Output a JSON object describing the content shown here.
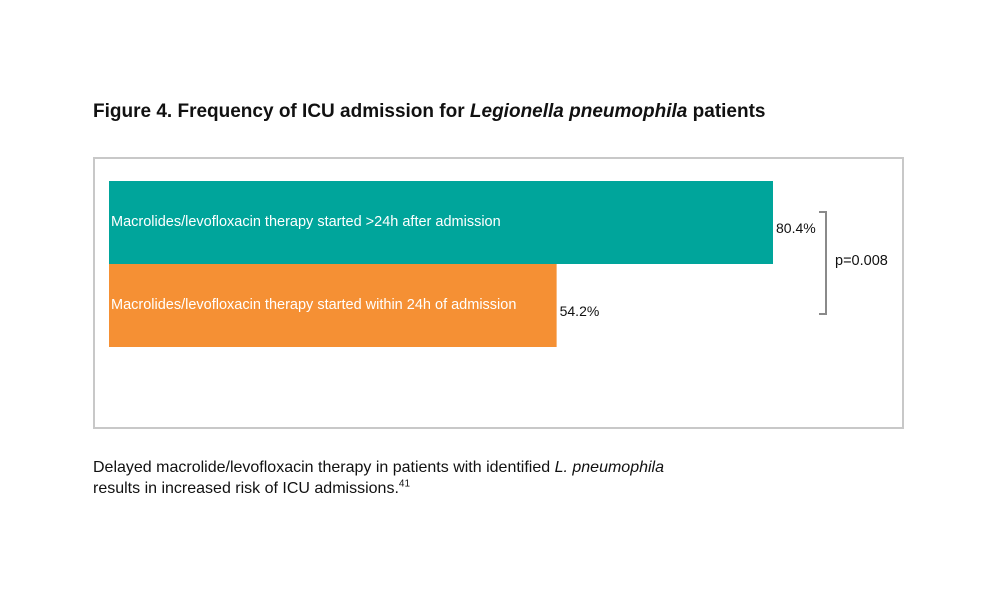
{
  "title": {
    "prefix": "Figure 4. Frequency of ICU admission for ",
    "italic": "Legionella pneumophila",
    "suffix": " patients"
  },
  "caption": {
    "part1": "Delayed macrolide/levofloxacin therapy in patients with identified ",
    "italic": "L. pneumophila",
    "part2": "results in increased risk of ICU admissions.",
    "superscript": "41"
  },
  "significance": {
    "text": "p=0.008"
  },
  "colors": {
    "teal": "#00a59b",
    "orange": "#f59034",
    "bracket": "#8a8a8a"
  },
  "chart_data": {
    "type": "bar",
    "orientation": "horizontal",
    "categories": [
      "Macrolides/levofloxacin therapy started >24h after admission",
      "Macrolides/levofloxacin therapy started within 24h of admission"
    ],
    "values": [
      80.4,
      54.2
    ],
    "value_labels": [
      "80.4%",
      "54.2%"
    ],
    "bar_colors": [
      "#00a59b",
      "#f59034"
    ],
    "xlim": [
      0,
      80.4
    ],
    "grid": false,
    "legend": "none",
    "title": "",
    "xlabel": "",
    "ylabel": "",
    "annotations": [
      "p=0.008"
    ]
  }
}
